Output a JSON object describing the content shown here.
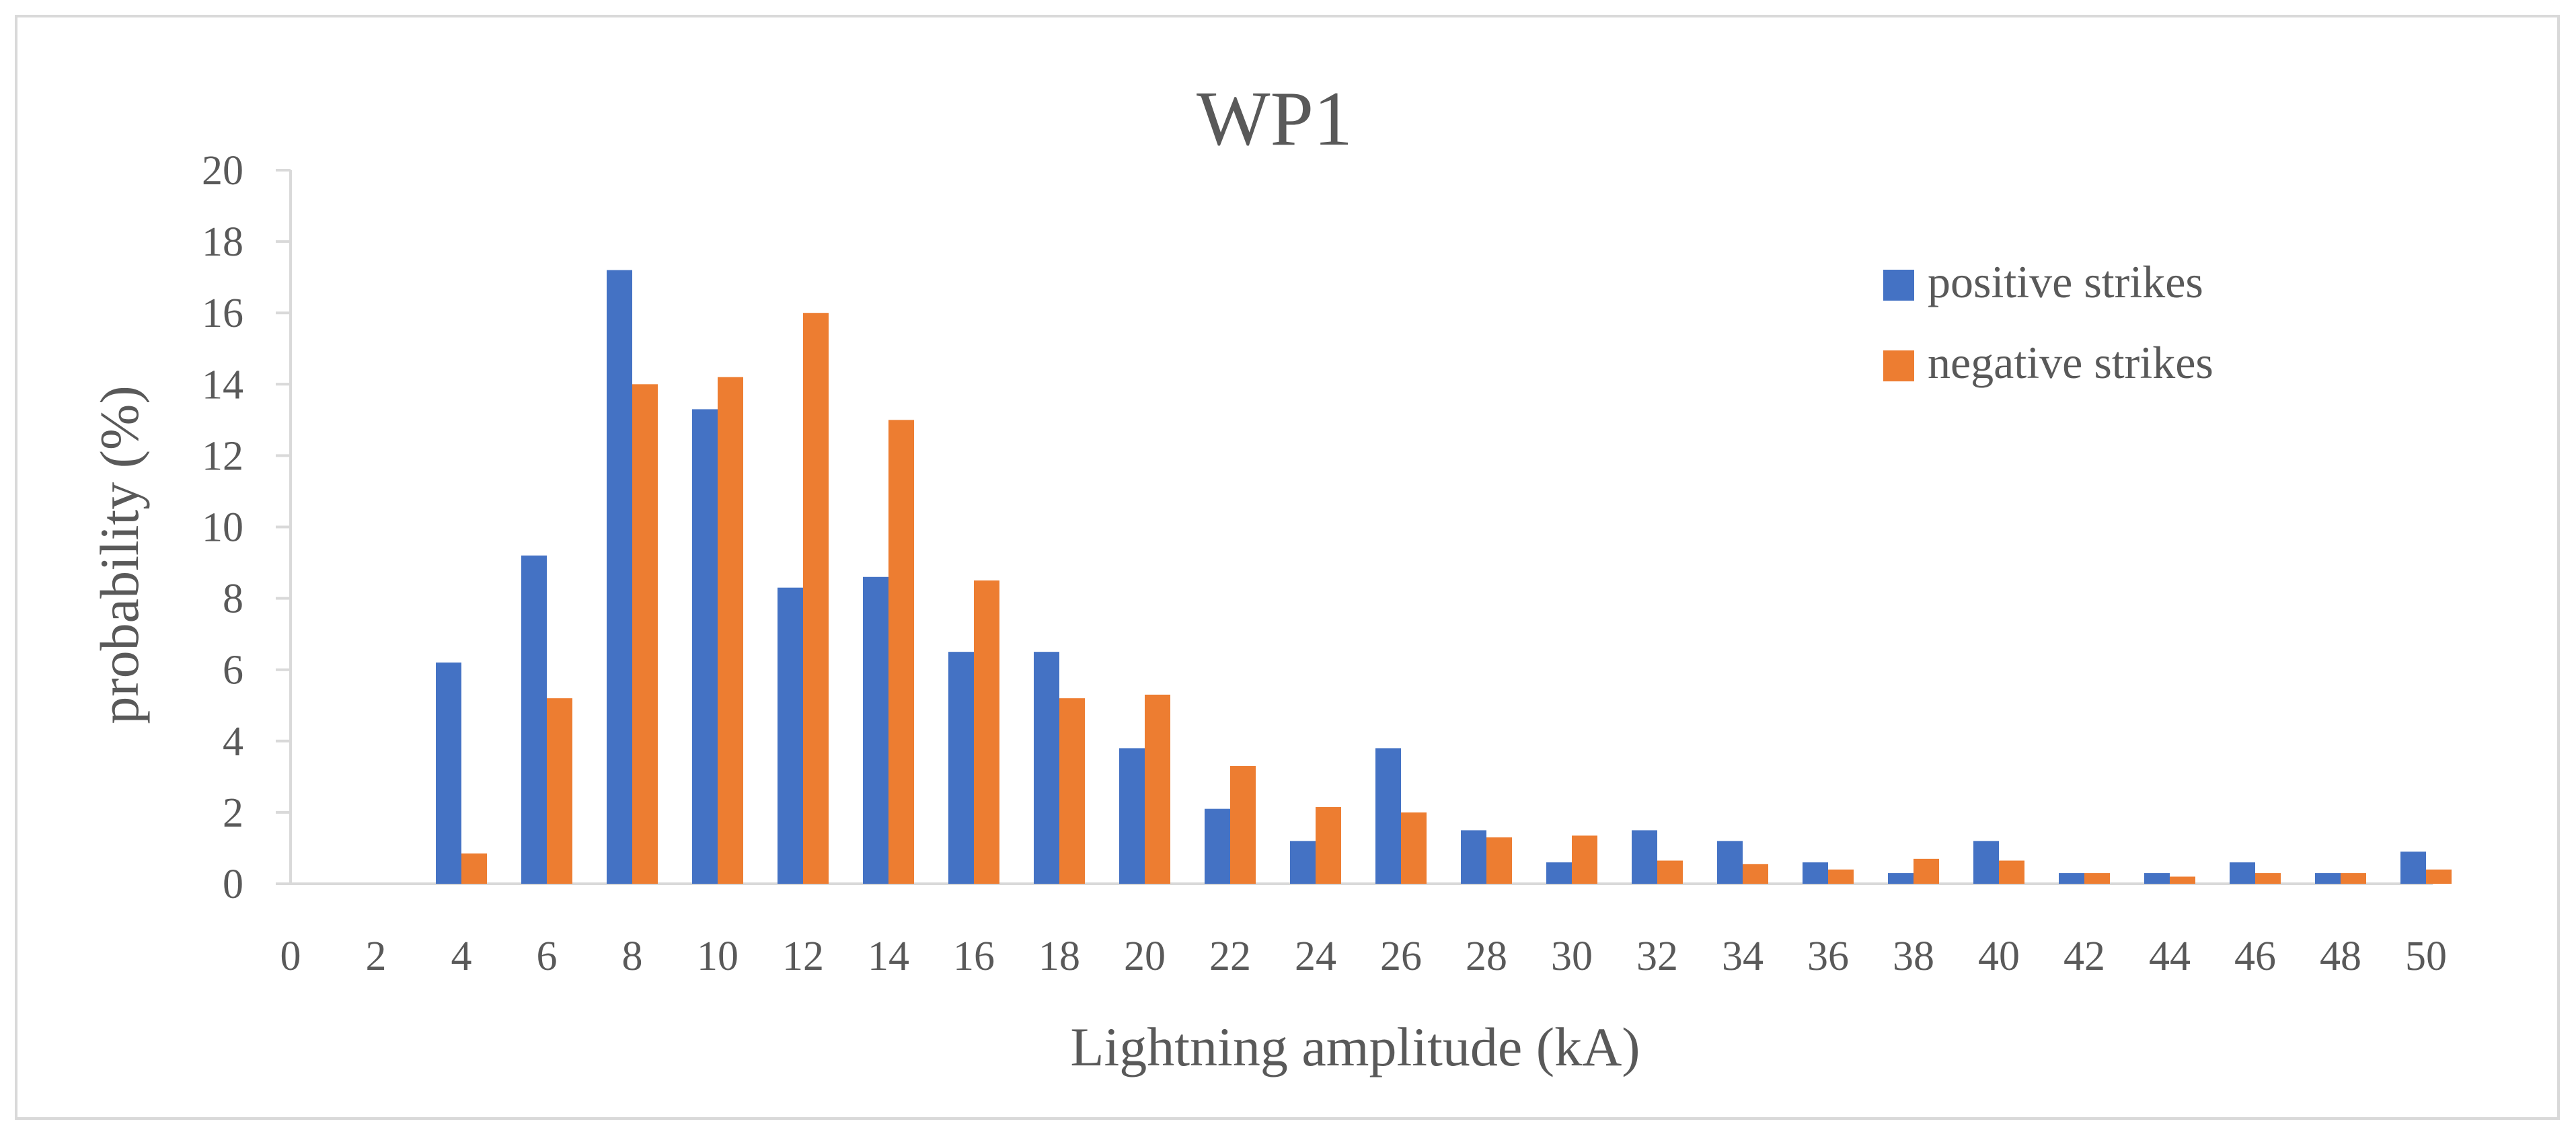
{
  "chart_data": {
    "type": "bar",
    "title": "WP1",
    "xlabel": "Lightning amplitude (kA)",
    "ylabel": "probability (%)",
    "ylim": [
      0,
      20
    ],
    "yticks": [
      0,
      2,
      4,
      6,
      8,
      10,
      12,
      14,
      16,
      18,
      20
    ],
    "categories": [
      "0",
      "2",
      "4",
      "6",
      "8",
      "10",
      "12",
      "14",
      "16",
      "18",
      "20",
      "22",
      "24",
      "26",
      "28",
      "30",
      "32",
      "34",
      "36",
      "38",
      "40",
      "42",
      "44",
      "46",
      "48",
      "50"
    ],
    "series": [
      {
        "name": "positive strikes",
        "color": "#4472C4",
        "values": [
          0,
          0,
          6.2,
          9.2,
          17.2,
          13.3,
          8.3,
          8.6,
          6.5,
          6.5,
          3.8,
          2.1,
          1.2,
          3.8,
          1.5,
          0.6,
          1.5,
          1.2,
          0.6,
          0.3,
          1.2,
          0.3,
          0.3,
          0.6,
          0.3,
          0.9
        ]
      },
      {
        "name": "negative strikes",
        "color": "#ED7D31",
        "values": [
          0,
          0,
          0.85,
          5.2,
          14.0,
          14.2,
          16.0,
          13.0,
          8.5,
          5.2,
          5.3,
          3.3,
          2.15,
          2.0,
          1.3,
          1.35,
          0.65,
          0.55,
          0.4,
          0.7,
          0.65,
          0.3,
          0.2,
          0.3,
          0.3,
          0.4
        ]
      }
    ],
    "legend_position": "top-right",
    "grid": false
  }
}
